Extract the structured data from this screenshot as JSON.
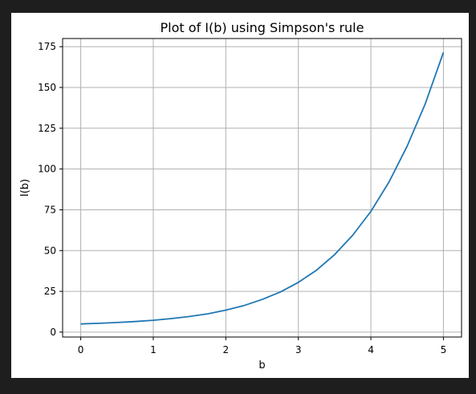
{
  "chart_data": {
    "type": "line",
    "title": "Plot of I(b) using Simpson's rule",
    "xlabel": "b",
    "ylabel": "I(b)",
    "xlim": [
      -0.25,
      5.25
    ],
    "ylim": [
      -3,
      180
    ],
    "xticks": [
      0,
      1,
      2,
      3,
      4,
      5
    ],
    "yticks": [
      0,
      25,
      50,
      75,
      100,
      125,
      150,
      175
    ],
    "xtick_labels": [
      "0",
      "1",
      "2",
      "3",
      "4",
      "5"
    ],
    "ytick_labels": [
      "0",
      "25",
      "50",
      "75",
      "100",
      "125",
      "150",
      "175"
    ],
    "grid": true,
    "legend": "none",
    "series": [
      {
        "color": "#1f77b4",
        "x": [
          0,
          0.25,
          0.5,
          0.75,
          1,
          1.25,
          1.5,
          1.75,
          2,
          2.25,
          2.5,
          2.75,
          3,
          3.25,
          3.5,
          3.75,
          4,
          4.25,
          4.5,
          4.75,
          5
        ],
        "y": [
          5.0,
          5.4,
          5.9,
          6.5,
          7.3,
          8.3,
          9.6,
          11.2,
          13.5,
          16.3,
          20.0,
          24.6,
          30.5,
          38.0,
          47.5,
          59.5,
          74.0,
          92.0,
          114.0,
          140.0,
          171.5
        ]
      }
    ]
  }
}
